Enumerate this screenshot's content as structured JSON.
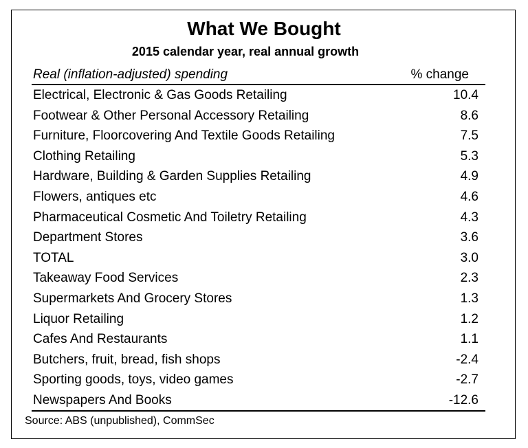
{
  "title": "What We Bought",
  "subtitle": "2015 calendar year, real annual growth",
  "header": {
    "label_column": "Real (inflation-adjusted) spending",
    "value_column": "% change"
  },
  "rows": [
    {
      "label": "Electrical, Electronic & Gas Goods Retailing",
      "value": "10.4"
    },
    {
      "label": "Footwear & Other Personal Accessory Retailing",
      "value": "8.6"
    },
    {
      "label": "Furniture, Floorcovering And Textile Goods Retailing",
      "value": "7.5"
    },
    {
      "label": "Clothing Retailing",
      "value": "5.3"
    },
    {
      "label": "Hardware, Building & Garden Supplies Retailing",
      "value": "4.9"
    },
    {
      "label": "Flowers, antiques etc",
      "value": "4.6"
    },
    {
      "label": "Pharmaceutical Cosmetic And Toiletry Retailing",
      "value": "4.3"
    },
    {
      "label": "Department Stores",
      "value": "3.6"
    },
    {
      "label": "TOTAL",
      "value": "3.0"
    },
    {
      "label": "Takeaway Food Services",
      "value": "2.3"
    },
    {
      "label": "Supermarkets And Grocery Stores",
      "value": "1.3"
    },
    {
      "label": "Liquor Retailing",
      "value": "1.2"
    },
    {
      "label": "Cafes And Restaurants",
      "value": "1.1"
    },
    {
      "label": "Butchers, fruit, bread, fish shops",
      "value": "-2.4"
    },
    {
      "label": "Sporting goods, toys, video games",
      "value": "-2.7"
    },
    {
      "label": "Newspapers And Books",
      "value": "-12.6"
    }
  ],
  "source": "Source: ABS (unpublished), CommSec"
}
